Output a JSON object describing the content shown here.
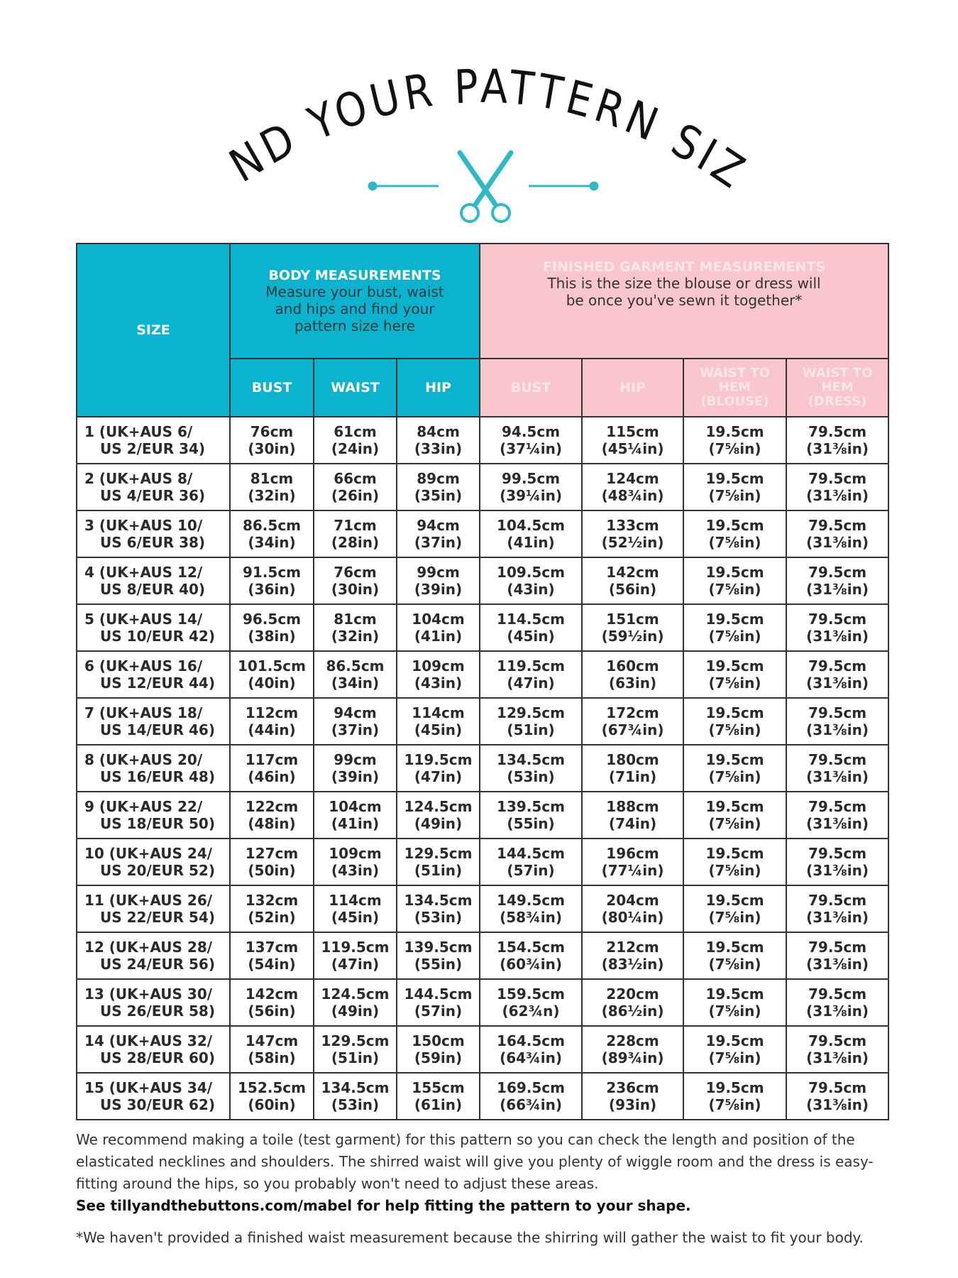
{
  "title": "FIND YOUR PATTERN SIZE",
  "colors": {
    "teal": "#0cb3cf",
    "pink": "#f8c6cb"
  },
  "icons": [
    "scissors-icon"
  ],
  "table": {
    "size_header": "SIZE",
    "body_group": {
      "title": "BODY MEASUREMENTS",
      "subtitle": "Measure your bust, waist and hips and find your pattern size here"
    },
    "finished_group": {
      "title": "FINISHED GARMENT MEASUREMENTS",
      "subtitle": "This is the size the blouse or dress will be once you've sewn it together*"
    },
    "columns": [
      "BUST",
      "WAIST",
      "HIP",
      "BUST",
      "HIP",
      "WAIST TO HEM (BLOUSE)",
      "WAIST TO HEM (DRESS)"
    ],
    "rows": [
      {
        "size": [
          "1 (UK+AUS 6/",
          "US 2/EUR 34)"
        ],
        "cells": [
          [
            "76cm",
            "(30in)"
          ],
          [
            "61cm",
            "(24in)"
          ],
          [
            "84cm",
            "(33in)"
          ],
          [
            "94.5cm",
            "(37¼in)"
          ],
          [
            "115cm",
            "(45¼in)"
          ],
          [
            "19.5cm",
            "(7⅝in)"
          ],
          [
            "79.5cm",
            "(31⅜in)"
          ]
        ]
      },
      {
        "size": [
          "2 (UK+AUS 8/",
          "US 4/EUR 36)"
        ],
        "cells": [
          [
            "81cm",
            "(32in)"
          ],
          [
            "66cm",
            "(26in)"
          ],
          [
            "89cm",
            "(35in)"
          ],
          [
            "99.5cm",
            "(39¼in)"
          ],
          [
            "124cm",
            "(48¾in)"
          ],
          [
            "19.5cm",
            "(7⅝in)"
          ],
          [
            "79.5cm",
            "(31⅜in)"
          ]
        ]
      },
      {
        "size": [
          "3 (UK+AUS 10/",
          "US 6/EUR 38)"
        ],
        "cells": [
          [
            "86.5cm",
            "(34in)"
          ],
          [
            "71cm",
            "(28in)"
          ],
          [
            "94cm",
            "(37in)"
          ],
          [
            "104.5cm",
            "(41in)"
          ],
          [
            "133cm",
            "(52½in)"
          ],
          [
            "19.5cm",
            "(7⅝in)"
          ],
          [
            "79.5cm",
            "(31⅜in)"
          ]
        ]
      },
      {
        "size": [
          "4 (UK+AUS 12/",
          "US 8/EUR 40)"
        ],
        "cells": [
          [
            "91.5cm",
            "(36in)"
          ],
          [
            "76cm",
            "(30in)"
          ],
          [
            "99cm",
            "(39in)"
          ],
          [
            "109.5cm",
            "(43in)"
          ],
          [
            "142cm",
            "(56in)"
          ],
          [
            "19.5cm",
            "(7⅝in)"
          ],
          [
            "79.5cm",
            "(31⅜in)"
          ]
        ]
      },
      {
        "size": [
          "5 (UK+AUS 14/",
          "US 10/EUR 42)"
        ],
        "cells": [
          [
            "96.5cm",
            "(38in)"
          ],
          [
            "81cm",
            "(32in)"
          ],
          [
            "104cm",
            "(41in)"
          ],
          [
            "114.5cm",
            "(45in)"
          ],
          [
            "151cm",
            "(59½in)"
          ],
          [
            "19.5cm",
            "(7⅝in)"
          ],
          [
            "79.5cm",
            "(31⅜in)"
          ]
        ]
      },
      {
        "size": [
          "6 (UK+AUS 16/",
          "US 12/EUR 44)"
        ],
        "cells": [
          [
            "101.5cm",
            "(40in)"
          ],
          [
            "86.5cm",
            "(34in)"
          ],
          [
            "109cm",
            "(43in)"
          ],
          [
            "119.5cm",
            "(47in)"
          ],
          [
            "160cm",
            "(63in)"
          ],
          [
            "19.5cm",
            "(7⅝in)"
          ],
          [
            "79.5cm",
            "(31⅜in)"
          ]
        ]
      },
      {
        "size": [
          "7 (UK+AUS 18/",
          "US 14/EUR 46)"
        ],
        "cells": [
          [
            "112cm",
            "(44in)"
          ],
          [
            "94cm",
            "(37in)"
          ],
          [
            "114cm",
            "(45in)"
          ],
          [
            "129.5cm",
            "(51in)"
          ],
          [
            "172cm",
            "(67¾in)"
          ],
          [
            "19.5cm",
            "(7⅝in)"
          ],
          [
            "79.5cm",
            "(31⅜in)"
          ]
        ]
      },
      {
        "size": [
          "8 (UK+AUS 20/",
          "US 16/EUR 48)"
        ],
        "cells": [
          [
            "117cm",
            "(46in)"
          ],
          [
            "99cm",
            "(39in)"
          ],
          [
            "119.5cm",
            "(47in)"
          ],
          [
            "134.5cm",
            "(53in)"
          ],
          [
            "180cm",
            "(71in)"
          ],
          [
            "19.5cm",
            "(7⅝in)"
          ],
          [
            "79.5cm",
            "(31⅜in)"
          ]
        ]
      },
      {
        "size": [
          "9 (UK+AUS 22/",
          "US 18/EUR 50)"
        ],
        "cells": [
          [
            "122cm",
            "(48in)"
          ],
          [
            "104cm",
            "(41in)"
          ],
          [
            "124.5cm",
            "(49in)"
          ],
          [
            "139.5cm",
            "(55in)"
          ],
          [
            "188cm",
            "(74in)"
          ],
          [
            "19.5cm",
            "(7⅝in)"
          ],
          [
            "79.5cm",
            "(31⅜in)"
          ]
        ]
      },
      {
        "size": [
          "10 (UK+AUS 24/",
          "US 20/EUR 52)"
        ],
        "cells": [
          [
            "127cm",
            "(50in)"
          ],
          [
            "109cm",
            "(43in)"
          ],
          [
            "129.5cm",
            "(51in)"
          ],
          [
            "144.5cm",
            "(57in)"
          ],
          [
            "196cm",
            "(77¼in)"
          ],
          [
            "19.5cm",
            "(7⅝in)"
          ],
          [
            "79.5cm",
            "(31⅜in)"
          ]
        ]
      },
      {
        "size": [
          "11 (UK+AUS 26/",
          "US 22/EUR 54)"
        ],
        "cells": [
          [
            "132cm",
            "(52in)"
          ],
          [
            "114cm",
            "(45in)"
          ],
          [
            "134.5cm",
            "(53in)"
          ],
          [
            "149.5cm",
            "(58¾in)"
          ],
          [
            "204cm",
            "(80¼in)"
          ],
          [
            "19.5cm",
            "(7⅝in)"
          ],
          [
            "79.5cm",
            "(31⅜in)"
          ]
        ]
      },
      {
        "size": [
          "12 (UK+AUS 28/",
          "US 24/EUR 56)"
        ],
        "cells": [
          [
            "137cm",
            "(54in)"
          ],
          [
            "119.5cm",
            "(47in)"
          ],
          [
            "139.5cm",
            "(55in)"
          ],
          [
            "154.5cm",
            "(60¾in)"
          ],
          [
            "212cm",
            "(83½in)"
          ],
          [
            "19.5cm",
            "(7⅝in)"
          ],
          [
            "79.5cm",
            "(31⅜in)"
          ]
        ]
      },
      {
        "size": [
          "13 (UK+AUS 30/",
          "US 26/EUR 58)"
        ],
        "cells": [
          [
            "142cm",
            "(56in)"
          ],
          [
            "124.5cm",
            "(49in)"
          ],
          [
            "144.5cm",
            "(57in)"
          ],
          [
            "159.5cm",
            "(62¾n)"
          ],
          [
            "220cm",
            "(86½in)"
          ],
          [
            "19.5cm",
            "(7⅝in)"
          ],
          [
            "79.5cm",
            "(31⅜in)"
          ]
        ]
      },
      {
        "size": [
          "14 (UK+AUS 32/",
          "US 28/EUR 60)"
        ],
        "cells": [
          [
            "147cm",
            "(58in)"
          ],
          [
            "129.5cm",
            "(51in)"
          ],
          [
            "150cm",
            "(59in)"
          ],
          [
            "164.5cm",
            "(64¾in)"
          ],
          [
            "228cm",
            "(89¾in)"
          ],
          [
            "19.5cm",
            "(7⅝in)"
          ],
          [
            "79.5cm",
            "(31⅜in)"
          ]
        ]
      },
      {
        "size": [
          "15 (UK+AUS 34/",
          "US 30/EUR 62)"
        ],
        "cells": [
          [
            "152.5cm",
            "(60in)"
          ],
          [
            "134.5cm",
            "(53in)"
          ],
          [
            "155cm",
            "(61in)"
          ],
          [
            "169.5cm",
            "(66¾in)"
          ],
          [
            "236cm",
            "(93in)"
          ],
          [
            "19.5cm",
            "(7⅝in)"
          ],
          [
            "79.5cm",
            "(31⅜in)"
          ]
        ]
      }
    ]
  },
  "notes": {
    "paragraph": "We recommend making a toile (test garment) for this pattern so you can check the length and position of the elasticated necklines and shoulders. The shirred waist will give you plenty of wiggle room and the dress is easy-fitting around the hips, so you probably won't need to adjust these areas.",
    "link_line": "See tillyandthebuttons.com/mabel for help fitting the pattern to your shape.",
    "footnote": "*We haven't provided a finished waist measurement because the shirring will gather the waist to fit your body."
  }
}
